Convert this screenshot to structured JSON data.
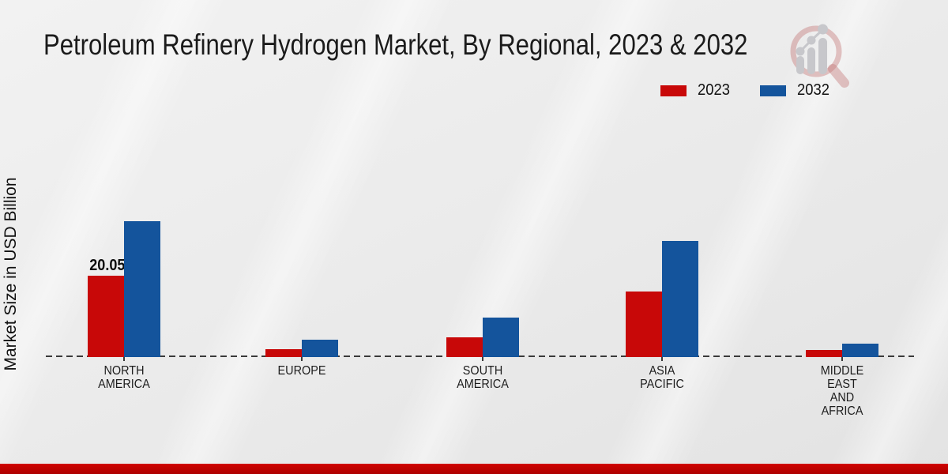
{
  "chart_data": {
    "type": "bar",
    "title": "Petroleum Refinery Hydrogen Market, By Regional, 2023 & 2032",
    "ylabel": "Market Size in USD Billion",
    "xlabel": "",
    "categories": [
      "NORTH AMERICA",
      "EUROPE",
      "SOUTH AMERICA",
      "ASIA PACIFIC",
      "MIDDLE EAST AND AFRICA"
    ],
    "category_lines": [
      [
        "NORTH",
        "AMERICA"
      ],
      [
        "EUROPE"
      ],
      [
        "SOUTH",
        "AMERICA"
      ],
      [
        "ASIA",
        "PACIFIC"
      ],
      [
        "MIDDLE",
        "EAST",
        "AND",
        "AFRICA"
      ]
    ],
    "series": [
      {
        "name": "2023",
        "color": "#c80808",
        "values": [
          20.05,
          2.0,
          4.9,
          16.2,
          1.7
        ],
        "data_labels": [
          "20.05",
          "",
          "",
          "",
          ""
        ]
      },
      {
        "name": "2032",
        "color": "#14549c",
        "values": [
          33.5,
          4.2,
          9.7,
          28.7,
          3.25
        ],
        "data_labels": [
          "",
          "",
          "",
          "",
          ""
        ]
      }
    ],
    "ylim": [
      0,
      36
    ],
    "grid": false,
    "legend_position": "top-right",
    "baseline_style": "dashed"
  },
  "watermark": {
    "name": "magnifier-growth-chart-logo"
  },
  "footer": {
    "accent_color": "#c00000"
  }
}
